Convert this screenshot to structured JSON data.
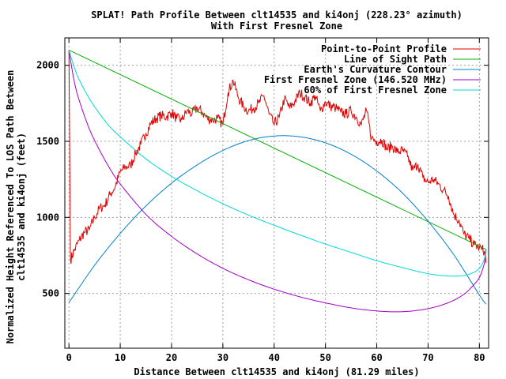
{
  "chart_data": {
    "type": "line",
    "title": "SPLAT! Path Profile Between clt14535 and ki4onj (228.23° azimuth)",
    "subtitle": "With First Fresnel Zone",
    "xlabel": "Distance Between clt14535 and ki4onj (81.29 miles)",
    "ylabel_lines": [
      "Normalized Height Referenced To LOS Path Between",
      "clt14535 and ki4onj (feet)"
    ],
    "xlim": [
      -0.8,
      81.8
    ],
    "ylim": [
      140,
      2180
    ],
    "x_ticks": [
      {
        "value": 0,
        "label": "0"
      },
      {
        "value": 10,
        "label": "10"
      },
      {
        "value": 20,
        "label": "20"
      },
      {
        "value": 30,
        "label": "30"
      },
      {
        "value": 40,
        "label": "40"
      },
      {
        "value": 50,
        "label": "50"
      },
      {
        "value": 60,
        "label": "60"
      },
      {
        "value": 70,
        "label": "70"
      },
      {
        "value": 80,
        "label": "80"
      }
    ],
    "y_ticks": [
      {
        "value": 500,
        "label": "500"
      },
      {
        "value": 1000,
        "label": "1000"
      },
      {
        "value": 1500,
        "label": "1500"
      },
      {
        "value": 2000,
        "label": "2000"
      }
    ],
    "grid": true,
    "legend_position": "top-right",
    "series": [
      {
        "name": "Point-to-Point Profile",
        "color": "#e00000",
        "x": [
          0,
          0.3,
          1,
          2,
          3,
          4,
          5,
          6,
          7,
          8,
          9,
          10,
          11,
          12,
          13,
          14,
          15,
          16,
          17,
          18,
          19,
          20,
          21,
          22,
          23,
          24,
          25,
          26,
          27,
          28,
          29,
          30,
          31,
          32,
          33,
          34,
          35,
          36,
          37,
          38,
          39,
          40,
          41,
          42,
          43,
          44,
          45,
          46,
          47,
          48,
          49,
          50,
          51,
          52,
          53,
          54,
          55,
          56,
          57,
          58,
          59,
          60,
          61,
          62,
          63,
          64,
          65,
          66,
          67,
          68,
          69,
          70,
          71,
          72,
          73,
          74,
          75,
          76,
          77,
          78,
          79,
          80,
          80.5,
          81,
          81.29
        ],
        "y": [
          2100,
          720,
          780,
          850,
          900,
          920,
          1000,
          1060,
          1080,
          1150,
          1200,
          1300,
          1330,
          1340,
          1420,
          1480,
          1550,
          1620,
          1650,
          1670,
          1660,
          1690,
          1650,
          1640,
          1700,
          1680,
          1720,
          1690,
          1650,
          1640,
          1650,
          1610,
          1820,
          1900,
          1790,
          1730,
          1700,
          1720,
          1750,
          1800,
          1680,
          1610,
          1660,
          1780,
          1720,
          1760,
          1820,
          1790,
          1750,
          1800,
          1700,
          1760,
          1730,
          1720,
          1690,
          1680,
          1700,
          1660,
          1610,
          1700,
          1520,
          1500,
          1510,
          1450,
          1470,
          1430,
          1440,
          1400,
          1310,
          1350,
          1260,
          1230,
          1250,
          1220,
          1180,
          1140,
          1020,
          980,
          890,
          860,
          820,
          800,
          790,
          780,
          700
        ]
      },
      {
        "name": "Line of Sight Path",
        "color": "#00b000",
        "x": [
          0,
          81.29
        ],
        "y": [
          2100,
          790
        ]
      },
      {
        "name": "Earth's Curvature Contour",
        "color": "#0080d0",
        "x": [
          0,
          5,
          10,
          15,
          20,
          25,
          30,
          35,
          40,
          45,
          50,
          55,
          60,
          65,
          70,
          75,
          80,
          81.29
        ],
        "y": [
          440,
          685,
          895,
          1075,
          1225,
          1345,
          1440,
          1505,
          1535,
          1530,
          1490,
          1415,
          1305,
          1160,
          975,
          755,
          490,
          430
        ]
      },
      {
        "name": "First Fresnel Zone (146.520 MHz)",
        "color": "#a000c8",
        "x": [
          0,
          1,
          2,
          4,
          6,
          8,
          10,
          15,
          20,
          25,
          30,
          35,
          40,
          45,
          50,
          55,
          60,
          65,
          70,
          74,
          77,
          79,
          80,
          80.5,
          81,
          81.29
        ],
        "y": [
          2100,
          1900,
          1770,
          1580,
          1440,
          1320,
          1220,
          1020,
          875,
          760,
          665,
          590,
          528,
          478,
          438,
          405,
          385,
          380,
          400,
          440,
          495,
          560,
          605,
          645,
          705,
          790
        ]
      },
      {
        "name": "60% of First Fresnel Zone",
        "color": "#00d8d8",
        "x": [
          0,
          1,
          2,
          4,
          6,
          8,
          10,
          15,
          20,
          25,
          30,
          35,
          40,
          45,
          50,
          55,
          60,
          65,
          70,
          74,
          77,
          79,
          80,
          80.5,
          81,
          81.29
        ],
        "y": [
          2100,
          1990,
          1905,
          1780,
          1680,
          1595,
          1530,
          1385,
          1270,
          1175,
          1090,
          1015,
          948,
          885,
          825,
          770,
          715,
          670,
          630,
          615,
          618,
          640,
          665,
          690,
          730,
          790
        ]
      }
    ]
  }
}
